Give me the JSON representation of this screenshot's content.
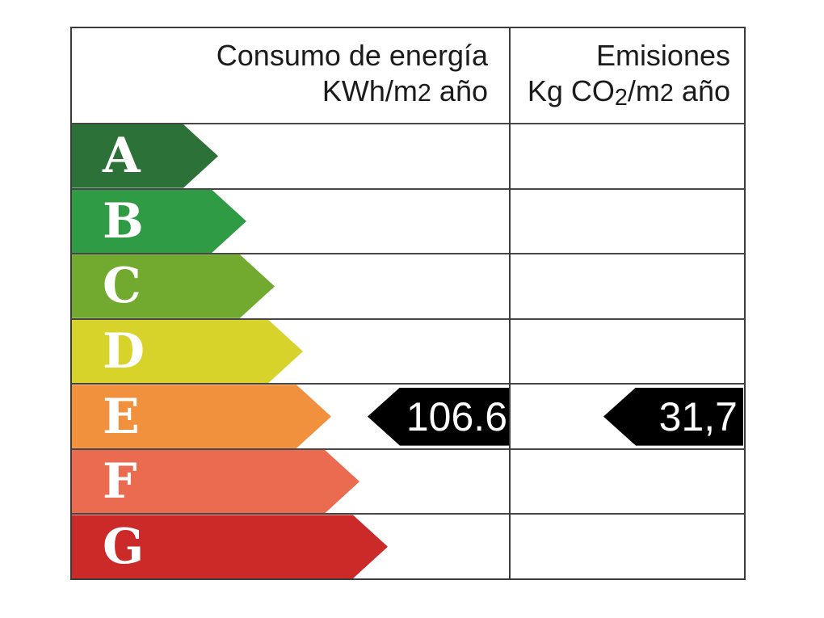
{
  "table": {
    "border_color": "#3b3b3b",
    "header": {
      "consumption": {
        "line1": "Consumo de energía",
        "unit_pre": "KWh/m",
        "unit_exp": "2",
        "unit_post": " año"
      },
      "emissions": {
        "line1": "Emisiones",
        "unit_pre": "Kg CO",
        "unit_sub": "2",
        "unit_mid": "/m",
        "unit_exp": "2",
        "unit_post": " año"
      }
    },
    "ratings": [
      {
        "letter": "A",
        "color": "#2c7137",
        "arrow_length": 181
      },
      {
        "letter": "B",
        "color": "#2f9c45",
        "arrow_length": 216
      },
      {
        "letter": "C",
        "color": "#72aa30",
        "arrow_length": 251
      },
      {
        "letter": "D",
        "color": "#d8d32b",
        "arrow_length": 286
      },
      {
        "letter": "E",
        "color": "#f1913e",
        "arrow_length": 321,
        "consumption_value": "106.6",
        "emissions_value": "31,7"
      },
      {
        "letter": "F",
        "color": "#ea6b50",
        "arrow_length": 356
      },
      {
        "letter": "G",
        "color": "#cb2a28",
        "arrow_length": 391
      }
    ],
    "value_arrow_color": "#000000",
    "value_text_color": "#ffffff",
    "letter_text_color": "#ffffff"
  },
  "chart_data": {
    "type": "bar",
    "title": "",
    "categories": [
      "A",
      "B",
      "C",
      "D",
      "E",
      "F",
      "G"
    ],
    "category_colors": [
      "#2c7137",
      "#2f9c45",
      "#72aa30",
      "#d8d32b",
      "#f1913e",
      "#ea6b50",
      "#cb2a28"
    ],
    "bar_lengths_relative": [
      181,
      216,
      251,
      286,
      321,
      356,
      391
    ],
    "series": [
      {
        "name": "Consumo de energía KWh/m2 año",
        "rating": "E",
        "value": 106.6,
        "label": "106.6"
      },
      {
        "name": "Emisiones Kg CO2/m2 año",
        "rating": "E",
        "value": 31.7,
        "label": "31,7"
      }
    ],
    "legend_position": "none",
    "grid": false
  }
}
